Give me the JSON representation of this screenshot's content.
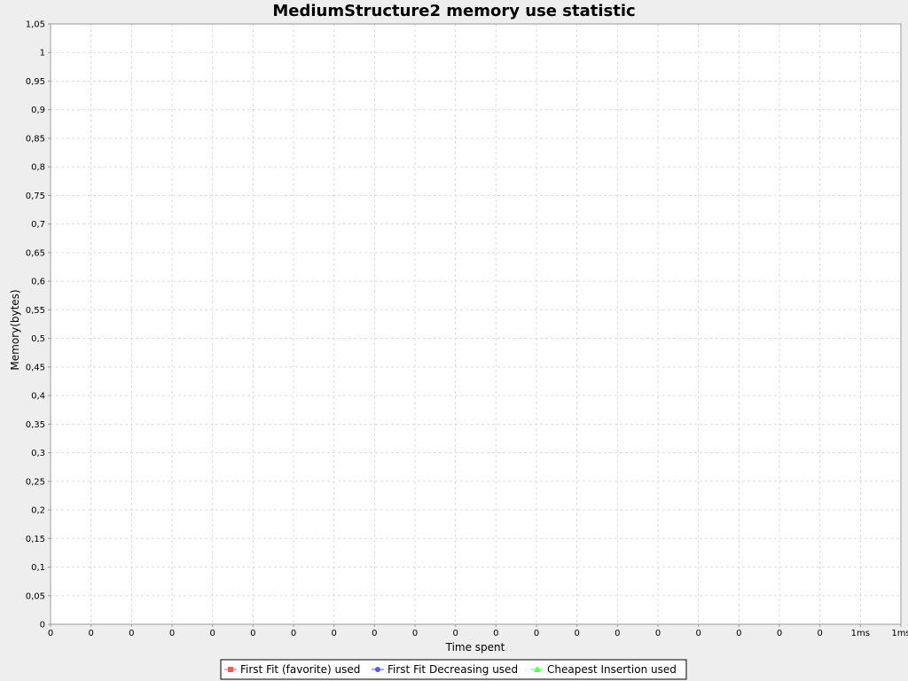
{
  "chart_data": {
    "type": "line",
    "title": "MediumStructure2 memory use statistic",
    "xlabel": "Time spent",
    "ylabel": "Memory(bytes)",
    "x_tick_labels": [
      "0",
      "0",
      "0",
      "0",
      "0",
      "0",
      "0",
      "0",
      "0",
      "0",
      "0",
      "0",
      "0",
      "0",
      "0",
      "0",
      "0",
      "0",
      "0",
      "0",
      "1ms",
      "1ms"
    ],
    "y_tick_labels": [
      "0",
      "0,05",
      "0,1",
      "0,15",
      "0,2",
      "0,25",
      "0,3",
      "0,35",
      "0,4",
      "0,45",
      "0,5",
      "0,55",
      "0,6",
      "0,65",
      "0,7",
      "0,75",
      "0,8",
      "0,85",
      "0,9",
      "0,95",
      "1",
      "1,05"
    ],
    "ylim": [
      0,
      1.05
    ],
    "y_step": 0.05,
    "grid": true,
    "legend_placement": "bottom-center",
    "series": [
      {
        "name": "First Fit (favorite) used",
        "color": "#ff5555",
        "marker": "square",
        "values": []
      },
      {
        "name": "First Fit Decreasing used",
        "color": "#5555ff",
        "marker": "circle",
        "values": []
      },
      {
        "name": "Cheapest Insertion used",
        "color": "#55ff55",
        "marker": "triangle",
        "values": []
      }
    ]
  }
}
